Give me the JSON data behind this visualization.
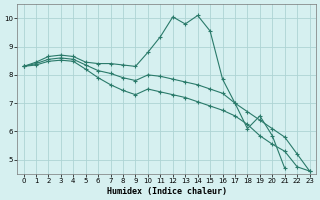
{
  "xlabel": "Humidex (Indice chaleur)",
  "background_color": "#d6f0f0",
  "grid_color": "#aed4d4",
  "line_color": "#2a7a6a",
  "x": [
    0,
    1,
    2,
    3,
    4,
    5,
    6,
    7,
    8,
    9,
    10,
    11,
    12,
    13,
    14,
    15,
    16,
    17,
    18,
    19,
    20,
    21,
    22,
    23
  ],
  "line1": [
    8.3,
    8.45,
    8.65,
    8.7,
    8.65,
    8.45,
    8.4,
    8.4,
    8.35,
    8.3,
    8.8,
    9.35,
    10.05,
    9.8,
    10.1,
    9.55,
    7.85,
    7.0,
    6.1,
    6.55,
    5.85,
    4.7,
    null,
    null
  ],
  "line2": [
    8.3,
    8.4,
    8.55,
    8.6,
    8.55,
    8.35,
    8.15,
    8.05,
    7.9,
    7.8,
    8.0,
    7.95,
    7.85,
    7.75,
    7.65,
    7.5,
    7.35,
    7.0,
    6.7,
    6.4,
    6.1,
    5.8,
    5.2,
    4.6
  ],
  "line3": [
    8.3,
    8.35,
    8.48,
    8.52,
    8.48,
    8.2,
    7.9,
    7.65,
    7.45,
    7.3,
    7.5,
    7.4,
    7.3,
    7.2,
    7.05,
    6.9,
    6.75,
    6.55,
    6.25,
    5.85,
    5.55,
    5.3,
    4.75,
    4.6
  ],
  "ylim": [
    4.5,
    10.5
  ],
  "xlim": [
    -0.5,
    23.5
  ],
  "yticks": [
    5,
    6,
    7,
    8,
    9,
    10
  ],
  "xticks": [
    0,
    1,
    2,
    3,
    4,
    5,
    6,
    7,
    8,
    9,
    10,
    11,
    12,
    13,
    14,
    15,
    16,
    17,
    18,
    19,
    20,
    21,
    22,
    23
  ]
}
